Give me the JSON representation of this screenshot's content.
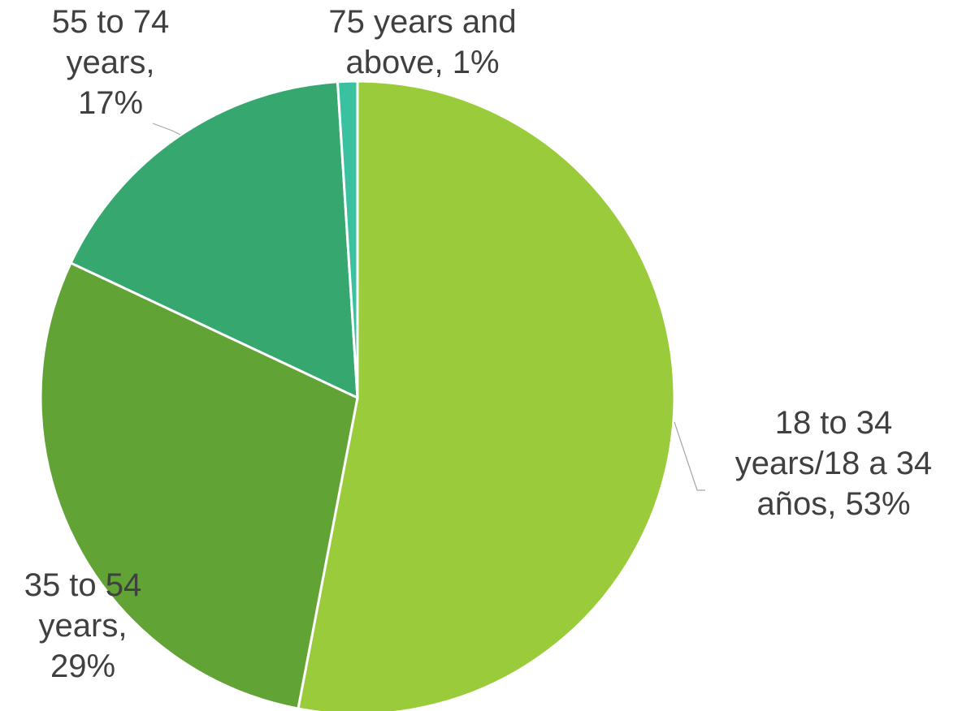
{
  "chart_data": {
    "type": "pie",
    "title": "",
    "slices": [
      {
        "label": "18 to 34 years/18 a 34 años",
        "value": 53,
        "display": [
          "18 to 34",
          "years/18 a 34",
          "años, 53%"
        ],
        "color": "#9acb3a"
      },
      {
        "label": "35 to 54 years",
        "value": 29,
        "display": [
          "35 to 54",
          "years,",
          "29%"
        ],
        "color": "#62a336"
      },
      {
        "label": "55 to 74 years",
        "value": 17,
        "display": [
          "55 to 74",
          "years,",
          "17%"
        ],
        "color": "#37a770"
      },
      {
        "label": "75 years and above",
        "value": 1,
        "display": [
          "75 years and",
          "above, 1%"
        ],
        "color": "#3ac2a0"
      }
    ],
    "legend": "none",
    "start_angle": "12 o'clock, clockwise"
  }
}
